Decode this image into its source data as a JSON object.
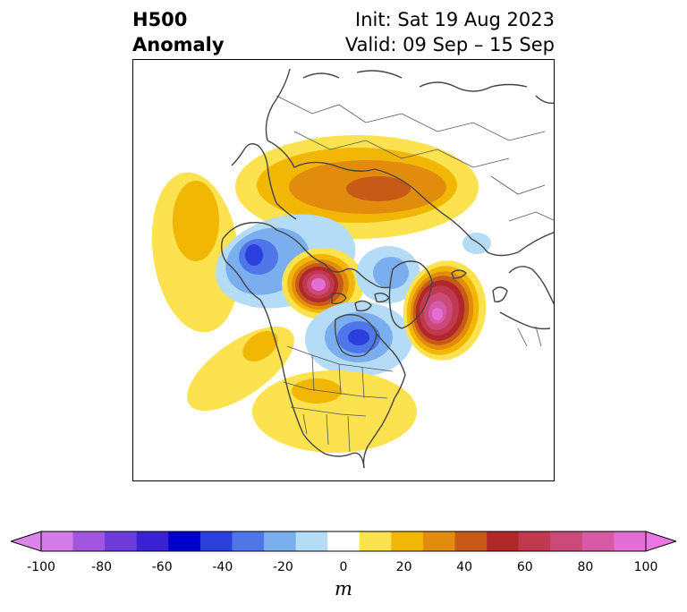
{
  "header": {
    "title_line1": "H500",
    "title_line2": "Anomaly",
    "init_text": "Init: Sat 19 Aug 2023",
    "valid_text": "Valid: 09 Sep – 15 Sep"
  },
  "map": {
    "projection": "polar-stereographic",
    "field": "H500 anomaly",
    "anomaly_centers": [
      {
        "region": "Northern Siberia",
        "sign": "positive",
        "max_level": 50
      },
      {
        "region": "North Pacific (west of North America)",
        "sign": "positive",
        "max_level": 20
      },
      {
        "region": "Alaska / Gulf of Alaska",
        "sign": "negative",
        "max_level": -50
      },
      {
        "region": "Western Canadian Arctic",
        "sign": "positive",
        "max_level": 100
      },
      {
        "region": "Hudson Bay",
        "sign": "negative",
        "max_level": -50
      },
      {
        "region": "Arctic Ocean (north of Greenland)",
        "sign": "negative",
        "max_level": -30
      },
      {
        "region": "North Atlantic",
        "sign": "positive",
        "max_level": 90
      },
      {
        "region": "Eastern United States",
        "sign": "positive",
        "max_level": 30
      },
      {
        "region": "Northeast Pacific",
        "sign": "positive",
        "max_level": 20
      }
    ]
  },
  "colorbar": {
    "units": "m",
    "extend": "both",
    "tick_labels": [
      "-100",
      "-80",
      "-60",
      "-40",
      "-20",
      "0",
      "20",
      "40",
      "60",
      "80",
      "100"
    ],
    "colors": [
      "#d37be6",
      "#a156e0",
      "#6c3bd9",
      "#3a22d4",
      "#0000cc",
      "#2a3fdc",
      "#4f76e8",
      "#7aaeef",
      "#b4dcf7",
      "#ffffff",
      "#fce24f",
      "#f2b705",
      "#e28c0e",
      "#c85a17",
      "#b0282a",
      "#c0394e",
      "#cc4a7a",
      "#d65aa6",
      "#e26ed6"
    ],
    "under_color": "#dd83ee",
    "over_color": "#e877e3"
  }
}
